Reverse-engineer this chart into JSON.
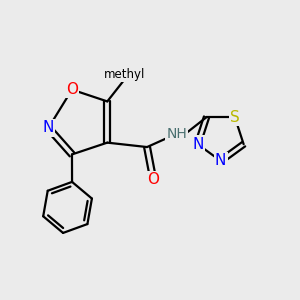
{
  "background_color": "#ebebeb",
  "bond_color": "#000000",
  "atom_colors": {
    "O": "#ff0000",
    "N": "#0000ff",
    "S": "#b8b800",
    "H": "#4a7070",
    "C": "#000000"
  },
  "lw": 1.6,
  "fs": 11
}
